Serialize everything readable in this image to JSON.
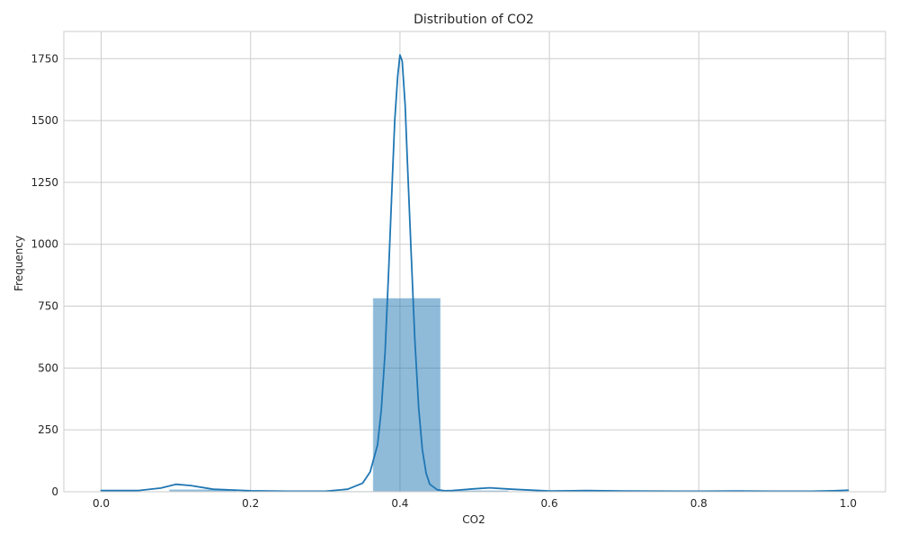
{
  "chart_data": {
    "type": "histogram",
    "title": "Distribution of CO2",
    "xlabel": "CO2",
    "ylabel": "Frequency",
    "xlim": [
      -0.05,
      1.05
    ],
    "ylim": [
      0,
      1860
    ],
    "x_ticks": [
      0.0,
      0.2,
      0.4,
      0.6,
      0.8,
      1.0
    ],
    "x_tick_labels": [
      "0.0",
      "0.2",
      "0.4",
      "0.6",
      "0.8",
      "1.0"
    ],
    "y_ticks": [
      0,
      250,
      500,
      750,
      1000,
      1250,
      1500,
      1750
    ],
    "y_tick_labels": [
      "0",
      "250",
      "500",
      "750",
      "1000",
      "1250",
      "1500",
      "1750"
    ],
    "grid": true,
    "bins": [
      {
        "x0": 0.0,
        "x1": 0.0909,
        "count": 2
      },
      {
        "x0": 0.0909,
        "x1": 0.1818,
        "count": 10
      },
      {
        "x0": 0.1818,
        "x1": 0.2727,
        "count": 3
      },
      {
        "x0": 0.2727,
        "x1": 0.3636,
        "count": 3
      },
      {
        "x0": 0.3636,
        "x1": 0.4545,
        "count": 783
      },
      {
        "x0": 0.4545,
        "x1": 0.5455,
        "count": 6
      },
      {
        "x0": 0.5455,
        "x1": 0.6364,
        "count": 2
      },
      {
        "x0": 0.6364,
        "x1": 0.7273,
        "count": 2
      },
      {
        "x0": 0.7273,
        "x1": 0.8182,
        "count": 1
      },
      {
        "x0": 0.8182,
        "x1": 0.9091,
        "count": 1
      },
      {
        "x0": 0.9091,
        "x1": 1.0,
        "count": 1
      }
    ],
    "kde": {
      "x": [
        0.0,
        0.05,
        0.08,
        0.1,
        0.12,
        0.15,
        0.2,
        0.25,
        0.3,
        0.33,
        0.35,
        0.36,
        0.37,
        0.375,
        0.38,
        0.385,
        0.39,
        0.393,
        0.397,
        0.4,
        0.403,
        0.407,
        0.41,
        0.415,
        0.42,
        0.425,
        0.43,
        0.435,
        0.44,
        0.45,
        0.46,
        0.47,
        0.5,
        0.52,
        0.55,
        0.6,
        0.65,
        0.7,
        0.8,
        0.85,
        0.9,
        0.95,
        0.98,
        1.0
      ],
      "y": [
        5,
        5,
        15,
        30,
        25,
        10,
        4,
        2,
        2,
        10,
        35,
        80,
        190,
        330,
        560,
        900,
        1280,
        1500,
        1680,
        1765,
        1740,
        1560,
        1330,
        960,
        610,
        340,
        170,
        75,
        30,
        8,
        4,
        5,
        12,
        16,
        10,
        3,
        5,
        3,
        2,
        3,
        2,
        2,
        4,
        6
      ]
    },
    "colors": {
      "bar_fill": "#1f77b4",
      "bar_opacity": 0.5,
      "kde_line": "#1f77b4",
      "grid": "#cccccc",
      "spine": "#cccccc"
    }
  }
}
